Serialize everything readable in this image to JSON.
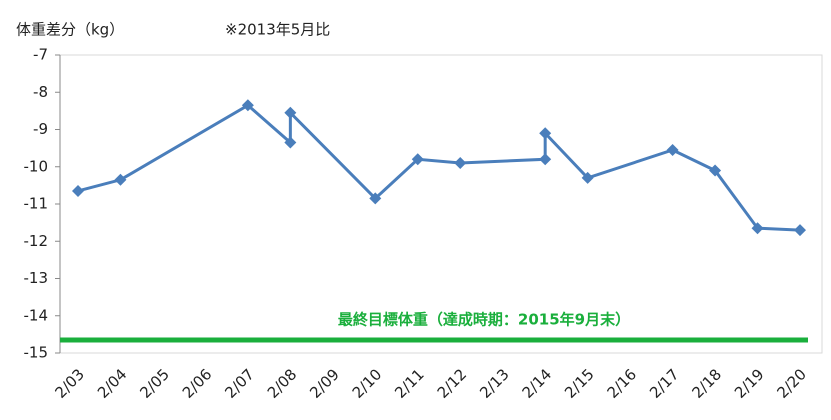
{
  "chart_data": {
    "type": "line",
    "title": "体重差分（kg）",
    "subtitle": "※2013年5月比",
    "categories": [
      "2/03",
      "2/04",
      "2/05",
      "2/06",
      "2/07",
      "2/08",
      "2/09",
      "2/10",
      "2/11",
      "2/12",
      "2/13",
      "2/14",
      "2/15",
      "2/16",
      "2/17",
      "2/18",
      "2/19",
      "2/20"
    ],
    "series": [
      {
        "name": "体重差分",
        "color": "#4a7ebb",
        "x": [
          "2/03",
          "2/04",
          "2/07",
          "2/08",
          "2/08",
          "2/10",
          "2/11",
          "2/12",
          "2/14",
          "2/14",
          "2/15",
          "2/17",
          "2/18",
          "2/19",
          "2/20"
        ],
        "values": [
          -10.65,
          -10.35,
          -8.35,
          -9.35,
          -8.55,
          -10.85,
          -9.8,
          -9.9,
          -9.8,
          -9.1,
          -10.3,
          -9.55,
          -10.1,
          -11.65,
          -11.7
        ]
      }
    ],
    "ylim": [
      -15,
      -7
    ],
    "yticks": [
      -15,
      -14,
      -13,
      -12,
      -11,
      -10,
      -9,
      -8,
      -7
    ],
    "target_line": {
      "value": -14.65,
      "label": "最終目標体重（達成時期：2015年9月末）",
      "color": "#1aaf3c"
    }
  }
}
